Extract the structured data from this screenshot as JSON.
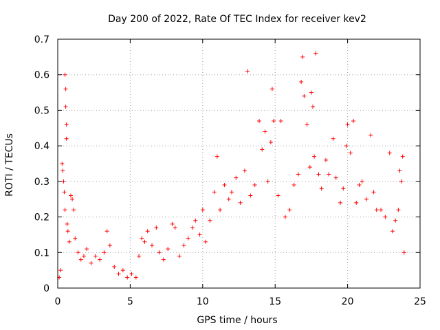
{
  "chart_data": {
    "type": "scatter",
    "title": "Day 200 of 2022, Rate Of TEC Index for receiver kev2",
    "xlabel": "GPS time / hours",
    "ylabel": "ROTI / TECUs",
    "xlim": [
      0,
      25
    ],
    "ylim": [
      0,
      0.7
    ],
    "xticks": [
      0,
      5,
      10,
      15,
      20,
      25
    ],
    "yticks": [
      0,
      0.1,
      0.2,
      0.3,
      0.4,
      0.5,
      0.6,
      0.7
    ],
    "grid": true,
    "marker": "+",
    "color": "#ff0000",
    "series": [
      {
        "name": "kev2",
        "points": [
          [
            0.1,
            0.03
          ],
          [
            0.2,
            0.05
          ],
          [
            0.3,
            0.35
          ],
          [
            0.35,
            0.33
          ],
          [
            0.4,
            0.3
          ],
          [
            0.45,
            0.27
          ],
          [
            0.5,
            0.22
          ],
          [
            0.5,
            0.6
          ],
          [
            0.55,
            0.56
          ],
          [
            0.55,
            0.51
          ],
          [
            0.6,
            0.46
          ],
          [
            0.6,
            0.42
          ],
          [
            0.65,
            0.18
          ],
          [
            0.7,
            0.16
          ],
          [
            0.8,
            0.13
          ],
          [
            0.9,
            0.26
          ],
          [
            1.0,
            0.25
          ],
          [
            1.1,
            0.22
          ],
          [
            1.2,
            0.14
          ],
          [
            1.4,
            0.1
          ],
          [
            1.6,
            0.08
          ],
          [
            1.8,
            0.09
          ],
          [
            2.0,
            0.11
          ],
          [
            2.3,
            0.07
          ],
          [
            2.6,
            0.09
          ],
          [
            2.9,
            0.08
          ],
          [
            3.2,
            0.1
          ],
          [
            3.4,
            0.16
          ],
          [
            3.6,
            0.12
          ],
          [
            3.9,
            0.06
          ],
          [
            4.2,
            0.04
          ],
          [
            4.5,
            0.05
          ],
          [
            4.8,
            0.03
          ],
          [
            5.1,
            0.04
          ],
          [
            5.4,
            0.03
          ],
          [
            5.6,
            0.09
          ],
          [
            5.8,
            0.14
          ],
          [
            6.0,
            0.13
          ],
          [
            6.2,
            0.16
          ],
          [
            6.5,
            0.12
          ],
          [
            6.8,
            0.17
          ],
          [
            7.0,
            0.1
          ],
          [
            7.3,
            0.08
          ],
          [
            7.6,
            0.11
          ],
          [
            7.9,
            0.18
          ],
          [
            8.1,
            0.17
          ],
          [
            8.4,
            0.09
          ],
          [
            8.7,
            0.12
          ],
          [
            9.0,
            0.14
          ],
          [
            9.3,
            0.17
          ],
          [
            9.5,
            0.19
          ],
          [
            9.8,
            0.15
          ],
          [
            10.0,
            0.22
          ],
          [
            10.2,
            0.13
          ],
          [
            10.5,
            0.19
          ],
          [
            10.8,
            0.27
          ],
          [
            11.0,
            0.37
          ],
          [
            11.2,
            0.22
          ],
          [
            11.5,
            0.29
          ],
          [
            11.8,
            0.25
          ],
          [
            12.0,
            0.27
          ],
          [
            12.3,
            0.31
          ],
          [
            12.6,
            0.24
          ],
          [
            12.9,
            0.33
          ],
          [
            13.1,
            0.61
          ],
          [
            13.3,
            0.26
          ],
          [
            13.6,
            0.29
          ],
          [
            13.9,
            0.47
          ],
          [
            14.1,
            0.39
          ],
          [
            14.3,
            0.44
          ],
          [
            14.5,
            0.3
          ],
          [
            14.7,
            0.41
          ],
          [
            14.8,
            0.56
          ],
          [
            14.9,
            0.47
          ],
          [
            15.2,
            0.26
          ],
          [
            15.4,
            0.47
          ],
          [
            15.7,
            0.2
          ],
          [
            16.0,
            0.22
          ],
          [
            16.3,
            0.29
          ],
          [
            16.6,
            0.32
          ],
          [
            16.8,
            0.58
          ],
          [
            16.9,
            0.65
          ],
          [
            17.0,
            0.54
          ],
          [
            17.2,
            0.46
          ],
          [
            17.4,
            0.34
          ],
          [
            17.5,
            0.55
          ],
          [
            17.6,
            0.51
          ],
          [
            17.7,
            0.37
          ],
          [
            17.8,
            0.66
          ],
          [
            18.0,
            0.32
          ],
          [
            18.2,
            0.28
          ],
          [
            18.5,
            0.36
          ],
          [
            18.7,
            0.32
          ],
          [
            19.0,
            0.42
          ],
          [
            19.2,
            0.31
          ],
          [
            19.5,
            0.24
          ],
          [
            19.7,
            0.28
          ],
          [
            19.9,
            0.4
          ],
          [
            20.0,
            0.46
          ],
          [
            20.2,
            0.38
          ],
          [
            20.4,
            0.47
          ],
          [
            20.6,
            0.24
          ],
          [
            20.8,
            0.29
          ],
          [
            21.0,
            0.3
          ],
          [
            21.3,
            0.25
          ],
          [
            21.6,
            0.43
          ],
          [
            21.8,
            0.27
          ],
          [
            22.0,
            0.22
          ],
          [
            22.3,
            0.22
          ],
          [
            22.6,
            0.2
          ],
          [
            22.9,
            0.38
          ],
          [
            23.1,
            0.16
          ],
          [
            23.3,
            0.19
          ],
          [
            23.5,
            0.22
          ],
          [
            23.6,
            0.33
          ],
          [
            23.7,
            0.3
          ],
          [
            23.8,
            0.37
          ],
          [
            23.9,
            0.1
          ]
        ]
      }
    ]
  }
}
